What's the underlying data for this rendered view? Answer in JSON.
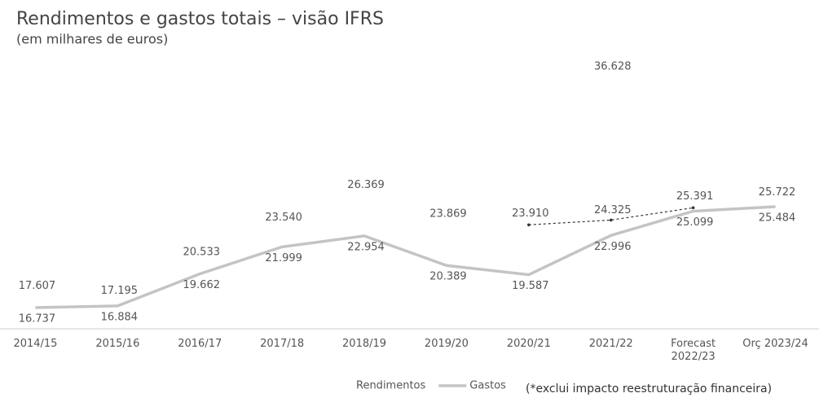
{
  "chart_data": {
    "type": "line",
    "title": "Rendimentos e gastos totais – visão IFRS",
    "subtitle": "(em milhares de euros)",
    "note": "(*exclui impacto reestruturação financeira)",
    "categories": [
      "2014/15",
      "2015/16",
      "2016/17",
      "2017/18",
      "2018/19",
      "2019/20",
      "2020/21",
      "2021/22",
      "Forecast 2022/23",
      "Orç 2023/24"
    ],
    "series": [
      {
        "name": "Rendimentos",
        "color": "#ffffff",
        "values": [
          17607,
          17195,
          20533,
          23540,
          26369,
          23869,
          23910,
          36628,
          25391,
          25722
        ],
        "value_labels": [
          "17.607",
          "17.195",
          "20.533",
          "23.540",
          "26.369",
          "23.869",
          "23.910",
          "36.628",
          "25.391",
          "25.722"
        ]
      },
      {
        "name": "Gastos",
        "color": "#c4c4c4",
        "values": [
          16737,
          16884,
          19662,
          21999,
          22954,
          20389,
          19587,
          22996,
          25099,
          25484
        ],
        "value_labels": [
          "16.737",
          "16.884",
          "19.662",
          "21.999",
          "22.954",
          "20.389",
          "19.587",
          "22.996",
          "25.099",
          "25.484"
        ]
      },
      {
        "color": "#333333",
        "dashed": true,
        "values": [
          null,
          null,
          null,
          null,
          null,
          null,
          23910,
          24325,
          25391,
          null
        ],
        "value_labels": [
          null,
          null,
          null,
          null,
          null,
          null,
          null,
          "24.325",
          null,
          null
        ]
      }
    ]
  }
}
